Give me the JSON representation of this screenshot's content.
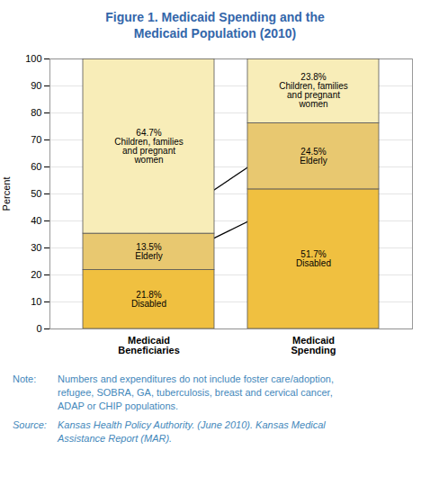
{
  "chart_data": {
    "type": "bar",
    "stacked": true,
    "title": "Figure 1. Medicaid Spending and the\nMedicaid Population (2010)",
    "categories": [
      "Medicaid\nBeneficiaries",
      "Medicaid\nSpending"
    ],
    "series": [
      {
        "color": "#F0C040",
        "values": [
          21.8,
          51.7
        ],
        "value_labels": [
          "21.8%\nDisabled",
          "51.7%\nDisabled"
        ]
      },
      {
        "color": "#E8C870",
        "values": [
          13.5,
          24.5
        ],
        "value_labels": [
          "13.5%\nElderly",
          "24.5%\nElderly"
        ]
      },
      {
        "color": "#F8EDB8",
        "values": [
          64.7,
          23.8
        ],
        "value_labels": [
          "64.7%\nChildren, families\nand pregnant\nwomen",
          "23.8%\nChildren, families\nand pregnant\nwomen"
        ]
      }
    ],
    "ylabel": "Percent",
    "ylim": [
      0,
      100
    ],
    "yticks": [
      0,
      10,
      20,
      30,
      40,
      50,
      60,
      70,
      80,
      90,
      100
    ],
    "grid": true,
    "data_labels": true,
    "annotations": [
      {
        "label": "Note:",
        "text": "Numbers and expenditures do not include foster care/adoption,\nrefugee, SOBRA, GA, tuberculosis, breast and cervical cancer,\nADAP or CHIP populations."
      },
      {
        "label": "Source:",
        "text": "Kansas Health Policy Authority. (June 2010). Kansas Medical\nAssistance Report (MAR)."
      }
    ]
  }
}
